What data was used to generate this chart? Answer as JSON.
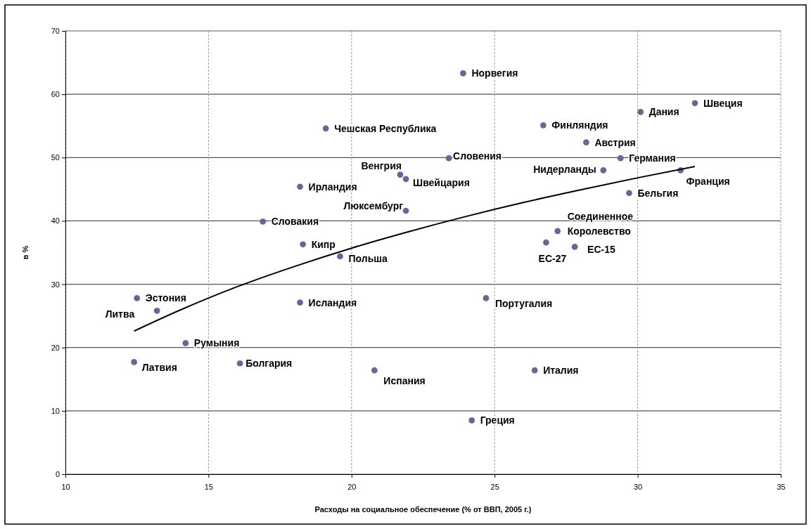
{
  "chart_data": {
    "type": "scatter",
    "xlabel": "Расходы на социальное обеспечение (% от ВВП, 2005 г.)",
    "ylabel": "в %",
    "xlim": [
      10,
      35
    ],
    "xticks": [
      10,
      15,
      20,
      25,
      30,
      35
    ],
    "ylim": [
      0,
      70
    ],
    "yticks": [
      0,
      10,
      20,
      30,
      40,
      50,
      60,
      70
    ],
    "grid": true,
    "series": [
      {
        "marker": "circle",
        "color": "#666699",
        "x": [
          19.1,
          21.7,
          21.9,
          18.2,
          21.9,
          16.9,
          18.3,
          23.9,
          32.0,
          30.1,
          26.7,
          28.2,
          23.4,
          29.4,
          28.8,
          31.5,
          29.7,
          27.2,
          26.8,
          27.8,
          19.6,
          12.5,
          13.2,
          18.2,
          14.2,
          12.4,
          16.1,
          20.8,
          24.7,
          26.4,
          24.2
        ],
        "values": [
          54.6,
          47.3,
          46.6,
          45.4,
          41.6,
          39.9,
          36.3,
          63.3,
          58.6,
          57.2,
          55.1,
          52.4,
          49.9,
          49.9,
          48.0,
          48.0,
          44.4,
          38.4,
          36.6,
          35.9,
          34.4,
          27.8,
          25.8,
          27.1,
          20.7,
          17.7,
          17.5,
          16.4,
          27.8,
          16.4,
          8.5
        ]
      },
      {
        "type": "line",
        "color": "#000000",
        "line_style": "solid",
        "x": [
          12.4,
          14,
          16,
          18,
          20,
          22,
          24,
          26,
          28,
          30,
          32
        ],
        "values": [
          22.6,
          25.9,
          29.6,
          32.8,
          35.7,
          38.3,
          40.7,
          42.9,
          44.9,
          46.8,
          48.6
        ]
      }
    ],
    "annotations": [
      {
        "text": "Чешская Республика",
        "x": 19.1,
        "y": 54.6
      },
      {
        "text": "Венгрия",
        "x": 21.7,
        "y": 47.3
      },
      {
        "text": "Швейцария",
        "x": 21.9,
        "y": 46.6
      },
      {
        "text": "Ирландия",
        "x": 18.2,
        "y": 45.4
      },
      {
        "text": "Люксембург",
        "x": 21.9,
        "y": 41.6
      },
      {
        "text": "Словакия",
        "x": 16.9,
        "y": 39.9
      },
      {
        "text": "Кипр",
        "x": 18.3,
        "y": 36.3
      },
      {
        "text": "Норвегия",
        "x": 23.9,
        "y": 63.3
      },
      {
        "text": "Швеция",
        "x": 32.0,
        "y": 58.6
      },
      {
        "text": "Дания",
        "x": 30.1,
        "y": 57.2
      },
      {
        "text": "Финляндия",
        "x": 26.7,
        "y": 55.1
      },
      {
        "text": "Австрия",
        "x": 28.2,
        "y": 52.4
      },
      {
        "text": "Словения",
        "x": 23.4,
        "y": 49.9
      },
      {
        "text": "Германия",
        "x": 29.4,
        "y": 49.9
      },
      {
        "text": "Нидерланды",
        "x": 28.8,
        "y": 48.0
      },
      {
        "text": "Франция",
        "x": 31.5,
        "y": 48.0
      },
      {
        "text": "Бельгия",
        "x": 29.7,
        "y": 44.4
      },
      {
        "text": "Соединенное Королевство",
        "x": 27.2,
        "y": 38.4
      },
      {
        "text": "ЕС-27",
        "x": 26.8,
        "y": 36.6
      },
      {
        "text": "ЕС-15",
        "x": 27.8,
        "y": 35.9
      },
      {
        "text": "Польша",
        "x": 19.6,
        "y": 34.4
      },
      {
        "text": "Эстония",
        "x": 12.5,
        "y": 27.8
      },
      {
        "text": "Литва",
        "x": 13.2,
        "y": 25.8
      },
      {
        "text": "Исландия",
        "x": 18.2,
        "y": 27.1
      },
      {
        "text": "Румыния",
        "x": 14.2,
        "y": 20.7
      },
      {
        "text": "Латвия",
        "x": 12.4,
        "y": 17.7
      },
      {
        "text": "Болгария",
        "x": 16.1,
        "y": 17.5
      },
      {
        "text": "Испания",
        "x": 20.8,
        "y": 16.4
      },
      {
        "text": "Португалия",
        "x": 24.7,
        "y": 27.8
      },
      {
        "text": "Италия",
        "x": 26.4,
        "y": 16.4
      },
      {
        "text": "Греция",
        "x": 24.2,
        "y": 8.5
      }
    ]
  }
}
